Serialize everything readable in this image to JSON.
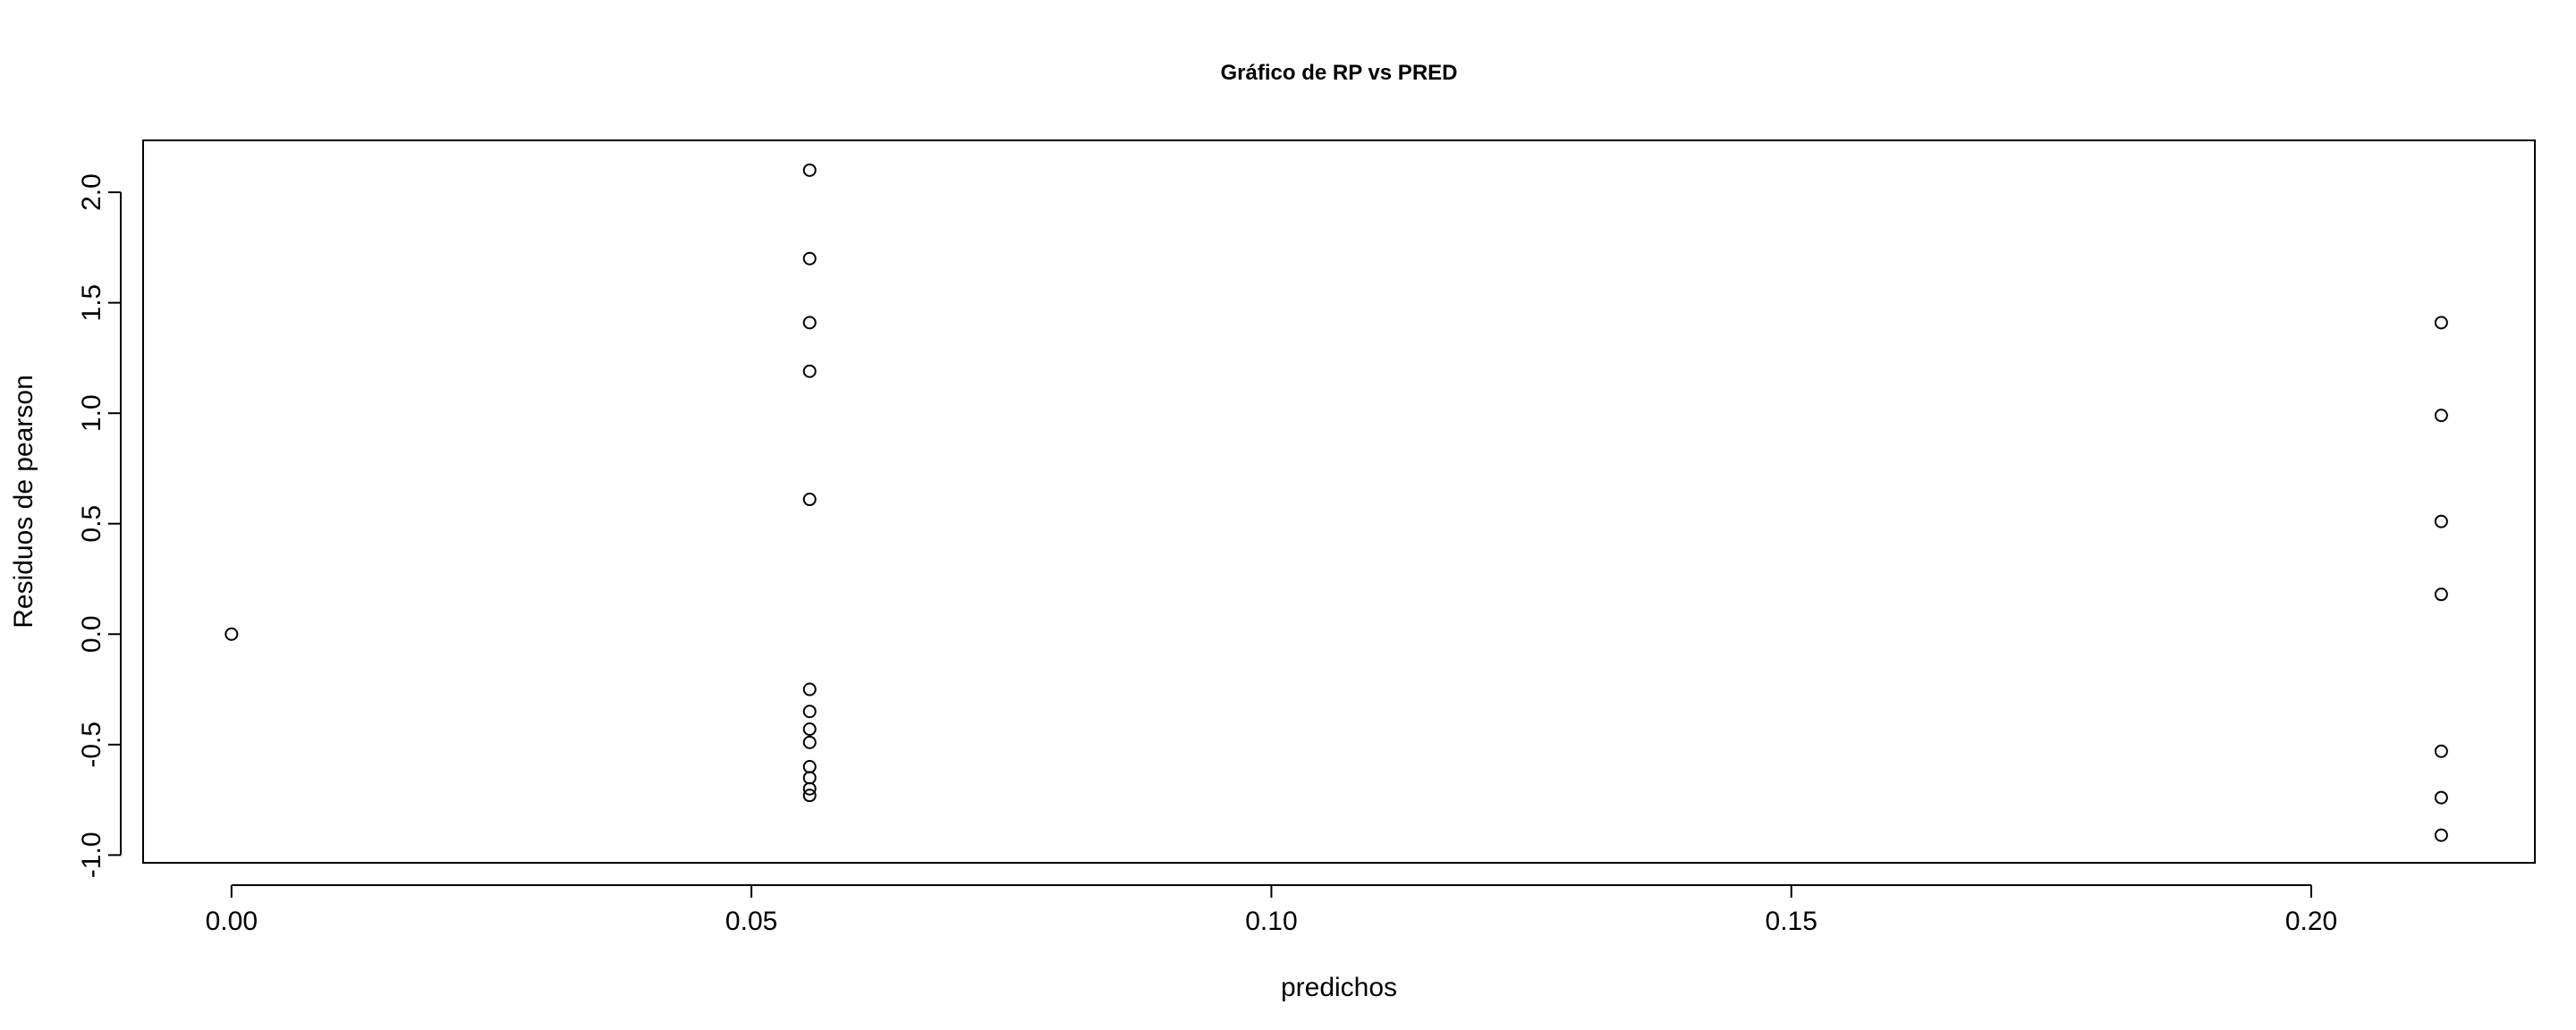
{
  "chart_data": {
    "type": "scatter",
    "title": "Gráfico de RP vs PRED",
    "xlabel": "predichos",
    "ylabel": "Residuos de pearson",
    "x_ticks": [
      "0.00",
      "0.05",
      "0.10",
      "0.15",
      "0.20"
    ],
    "y_ticks": [
      "-1.0",
      "-0.5",
      "0.0",
      "0.5",
      "1.0",
      "1.5",
      "2.0"
    ],
    "xlim": [
      -0.0085,
      0.2215
    ],
    "ylim": [
      -1.035,
      2.235
    ],
    "grid": false,
    "marker": "open-circle",
    "points": [
      {
        "x": 0.0,
        "y": 0.0
      },
      {
        "x": 0.0556,
        "y": 2.1
      },
      {
        "x": 0.0556,
        "y": 1.7
      },
      {
        "x": 0.0556,
        "y": 1.41
      },
      {
        "x": 0.0556,
        "y": 1.19
      },
      {
        "x": 0.0556,
        "y": 0.61
      },
      {
        "x": 0.0556,
        "y": -0.25
      },
      {
        "x": 0.0556,
        "y": -0.35
      },
      {
        "x": 0.0556,
        "y": -0.43
      },
      {
        "x": 0.0556,
        "y": -0.49
      },
      {
        "x": 0.0556,
        "y": -0.6
      },
      {
        "x": 0.0556,
        "y": -0.65
      },
      {
        "x": 0.0556,
        "y": -0.7
      },
      {
        "x": 0.0556,
        "y": -0.73
      },
      {
        "x": 0.2125,
        "y": 1.41
      },
      {
        "x": 0.2125,
        "y": 0.99
      },
      {
        "x": 0.2125,
        "y": 0.51
      },
      {
        "x": 0.2125,
        "y": 0.18
      },
      {
        "x": 0.2125,
        "y": -0.53
      },
      {
        "x": 0.2125,
        "y": -0.74
      },
      {
        "x": 0.2125,
        "y": -0.91
      }
    ]
  }
}
